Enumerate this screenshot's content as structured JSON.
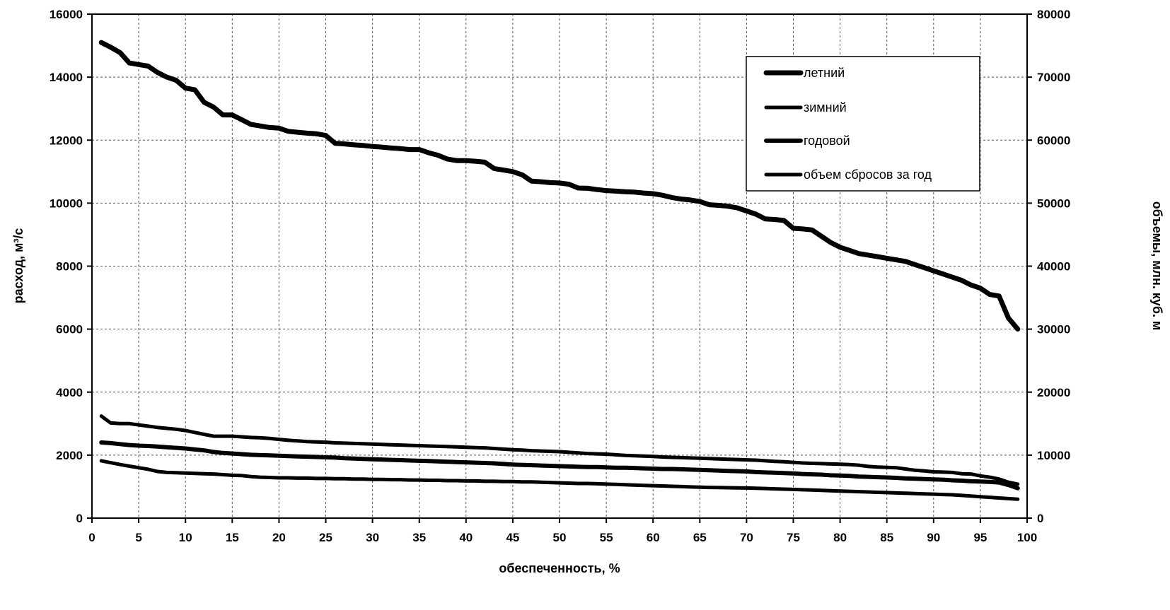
{
  "chart_data": {
    "type": "line",
    "xlabel": "обеспеченность, %",
    "ylabel": "расход, м³/с",
    "y2label": "объемы, млн. куб. м",
    "xlim": [
      0,
      100
    ],
    "ylim": [
      0,
      16000
    ],
    "y2lim": [
      0,
      80000
    ],
    "xticks": [
      0,
      5,
      10,
      15,
      20,
      25,
      30,
      35,
      40,
      45,
      50,
      55,
      60,
      65,
      70,
      75,
      80,
      85,
      90,
      95,
      100
    ],
    "yticks": [
      0,
      2000,
      4000,
      6000,
      8000,
      10000,
      12000,
      14000,
      16000
    ],
    "y2ticks": [
      0,
      10000,
      20000,
      30000,
      40000,
      50000,
      60000,
      70000,
      80000
    ],
    "grid": true,
    "legend_position": "top-right",
    "series": [
      {
        "name": "летний",
        "axis": "left",
        "x": [
          1,
          2,
          3,
          4,
          5,
          6,
          7,
          8,
          9,
          10,
          11,
          12,
          13,
          14,
          15,
          16,
          17,
          18,
          19,
          20,
          21,
          22,
          23,
          24,
          25,
          26,
          27,
          28,
          29,
          30,
          31,
          32,
          33,
          34,
          35,
          36,
          37,
          38,
          39,
          40,
          41,
          42,
          43,
          44,
          45,
          46,
          47,
          48,
          49,
          50,
          51,
          52,
          53,
          54,
          55,
          56,
          57,
          58,
          59,
          60,
          61,
          62,
          63,
          64,
          65,
          66,
          67,
          68,
          69,
          70,
          71,
          72,
          73,
          74,
          75,
          76,
          77,
          78,
          79,
          80,
          81,
          82,
          83,
          84,
          85,
          86,
          87,
          88,
          89,
          90,
          91,
          92,
          93,
          94,
          95,
          96,
          97,
          98,
          99
        ],
        "values": [
          15100,
          14950,
          14780,
          14450,
          14400,
          14350,
          14150,
          14000,
          13900,
          13650,
          13600,
          13200,
          13050,
          12800,
          12800,
          12650,
          12500,
          12450,
          12400,
          12380,
          12280,
          12250,
          12220,
          12200,
          12150,
          11900,
          11880,
          11850,
          11830,
          11800,
          11780,
          11750,
          11730,
          11700,
          11700,
          11600,
          11520,
          11400,
          11350,
          11350,
          11330,
          11300,
          11100,
          11050,
          11000,
          10900,
          10700,
          10680,
          10650,
          10640,
          10600,
          10480,
          10470,
          10430,
          10400,
          10380,
          10360,
          10350,
          10320,
          10300,
          10250,
          10180,
          10130,
          10100,
          10050,
          9950,
          9930,
          9900,
          9850,
          9750,
          9650,
          9500,
          9480,
          9450,
          9200,
          9180,
          9150,
          8950,
          8750,
          8600,
          8500,
          8400,
          8350,
          8300,
          8250,
          8200,
          8150,
          8050,
          7950,
          7850,
          7750,
          7650,
          7550,
          7400,
          7300,
          7100,
          7050,
          6350,
          6000
        ]
      },
      {
        "name": "зимний",
        "axis": "left",
        "x": [
          1,
          2,
          3,
          4,
          5,
          6,
          7,
          8,
          9,
          10,
          11,
          12,
          13,
          14,
          15,
          16,
          17,
          18,
          19,
          20,
          21,
          22,
          23,
          24,
          25,
          26,
          27,
          28,
          29,
          30,
          31,
          32,
          33,
          34,
          35,
          36,
          37,
          38,
          39,
          40,
          41,
          42,
          43,
          44,
          45,
          46,
          47,
          48,
          49,
          50,
          51,
          52,
          53,
          54,
          55,
          56,
          57,
          58,
          59,
          60,
          61,
          62,
          63,
          64,
          65,
          66,
          67,
          68,
          69,
          70,
          71,
          72,
          73,
          74,
          75,
          76,
          77,
          78,
          79,
          80,
          81,
          82,
          83,
          84,
          85,
          86,
          87,
          88,
          89,
          90,
          91,
          92,
          93,
          94,
          95,
          96,
          97,
          98,
          99
        ],
        "values": [
          1820,
          1760,
          1700,
          1650,
          1600,
          1550,
          1480,
          1450,
          1440,
          1430,
          1420,
          1410,
          1400,
          1380,
          1360,
          1350,
          1320,
          1300,
          1290,
          1280,
          1280,
          1270,
          1270,
          1260,
          1260,
          1250,
          1250,
          1240,
          1240,
          1230,
          1230,
          1220,
          1220,
          1210,
          1210,
          1200,
          1200,
          1190,
          1190,
          1180,
          1180,
          1170,
          1170,
          1160,
          1160,
          1150,
          1150,
          1140,
          1130,
          1120,
          1110,
          1100,
          1100,
          1090,
          1080,
          1070,
          1060,
          1050,
          1040,
          1030,
          1020,
          1010,
          1000,
          990,
          980,
          975,
          970,
          965,
          960,
          955,
          950,
          940,
          930,
          920,
          910,
          900,
          890,
          880,
          870,
          860,
          850,
          840,
          830,
          820,
          810,
          800,
          790,
          780,
          770,
          760,
          750,
          740,
          720,
          700,
          680,
          660,
          640,
          620,
          600
        ]
      },
      {
        "name": "годовой",
        "axis": "left",
        "x": [
          1,
          2,
          3,
          4,
          5,
          6,
          7,
          8,
          9,
          10,
          11,
          12,
          13,
          14,
          15,
          16,
          17,
          18,
          19,
          20,
          21,
          22,
          23,
          24,
          25,
          26,
          27,
          28,
          29,
          30,
          31,
          32,
          33,
          34,
          35,
          36,
          37,
          38,
          39,
          40,
          41,
          42,
          43,
          44,
          45,
          46,
          47,
          48,
          49,
          50,
          51,
          52,
          53,
          54,
          55,
          56,
          57,
          58,
          59,
          60,
          61,
          62,
          63,
          64,
          65,
          66,
          67,
          68,
          69,
          70,
          71,
          72,
          73,
          74,
          75,
          76,
          77,
          78,
          79,
          80,
          81,
          82,
          83,
          84,
          85,
          86,
          87,
          88,
          89,
          90,
          91,
          92,
          93,
          94,
          95,
          96,
          97,
          98,
          99
        ],
        "values": [
          2400,
          2380,
          2350,
          2320,
          2300,
          2290,
          2270,
          2250,
          2230,
          2210,
          2180,
          2150,
          2100,
          2070,
          2050,
          2030,
          2010,
          2000,
          1990,
          1980,
          1970,
          1960,
          1950,
          1940,
          1930,
          1920,
          1900,
          1890,
          1880,
          1870,
          1860,
          1850,
          1840,
          1830,
          1820,
          1810,
          1800,
          1790,
          1780,
          1770,
          1760,
          1750,
          1740,
          1720,
          1700,
          1690,
          1680,
          1670,
          1660,
          1650,
          1640,
          1630,
          1620,
          1620,
          1610,
          1600,
          1600,
          1590,
          1580,
          1570,
          1560,
          1560,
          1550,
          1540,
          1530,
          1520,
          1510,
          1500,
          1490,
          1480,
          1460,
          1450,
          1440,
          1430,
          1420,
          1400,
          1390,
          1380,
          1360,
          1350,
          1340,
          1320,
          1310,
          1300,
          1290,
          1280,
          1260,
          1250,
          1240,
          1230,
          1220,
          1200,
          1190,
          1170,
          1160,
          1150,
          1130,
          1050,
          950
        ]
      },
      {
        "name": "объем сбросов за год",
        "axis": "right",
        "x": [
          1,
          2,
          3,
          4,
          5,
          6,
          7,
          8,
          9,
          10,
          11,
          12,
          13,
          14,
          15,
          16,
          17,
          18,
          19,
          20,
          21,
          22,
          23,
          24,
          25,
          26,
          27,
          28,
          29,
          30,
          31,
          32,
          33,
          34,
          35,
          36,
          37,
          38,
          39,
          40,
          41,
          42,
          43,
          44,
          45,
          46,
          47,
          48,
          49,
          50,
          51,
          52,
          53,
          54,
          55,
          56,
          57,
          58,
          59,
          60,
          61,
          62,
          63,
          64,
          65,
          66,
          67,
          68,
          69,
          70,
          71,
          72,
          73,
          74,
          75,
          76,
          77,
          78,
          79,
          80,
          81,
          82,
          83,
          84,
          85,
          86,
          87,
          88,
          89,
          90,
          91,
          92,
          93,
          94,
          95,
          96,
          97,
          98,
          99
        ],
        "values": [
          16200,
          15100,
          15000,
          15000,
          14800,
          14600,
          14400,
          14250,
          14100,
          13900,
          13600,
          13300,
          13000,
          13000,
          13000,
          12900,
          12800,
          12750,
          12650,
          12500,
          12350,
          12250,
          12150,
          12100,
          12050,
          11950,
          11900,
          11850,
          11800,
          11750,
          11700,
          11650,
          11600,
          11550,
          11500,
          11450,
          11400,
          11350,
          11300,
          11250,
          11200,
          11150,
          11050,
          10950,
          10850,
          10800,
          10700,
          10650,
          10600,
          10550,
          10450,
          10350,
          10250,
          10200,
          10150,
          10050,
          9950,
          9900,
          9850,
          9800,
          9700,
          9650,
          9600,
          9550,
          9500,
          9450,
          9400,
          9350,
          9300,
          9250,
          9200,
          9100,
          9000,
          8950,
          8850,
          8750,
          8700,
          8650,
          8600,
          8550,
          8500,
          8400,
          8200,
          8100,
          8050,
          8000,
          7800,
          7600,
          7500,
          7350,
          7300,
          7250,
          7050,
          7000,
          6700,
          6500,
          6200,
          5700,
          5400
        ]
      }
    ]
  }
}
